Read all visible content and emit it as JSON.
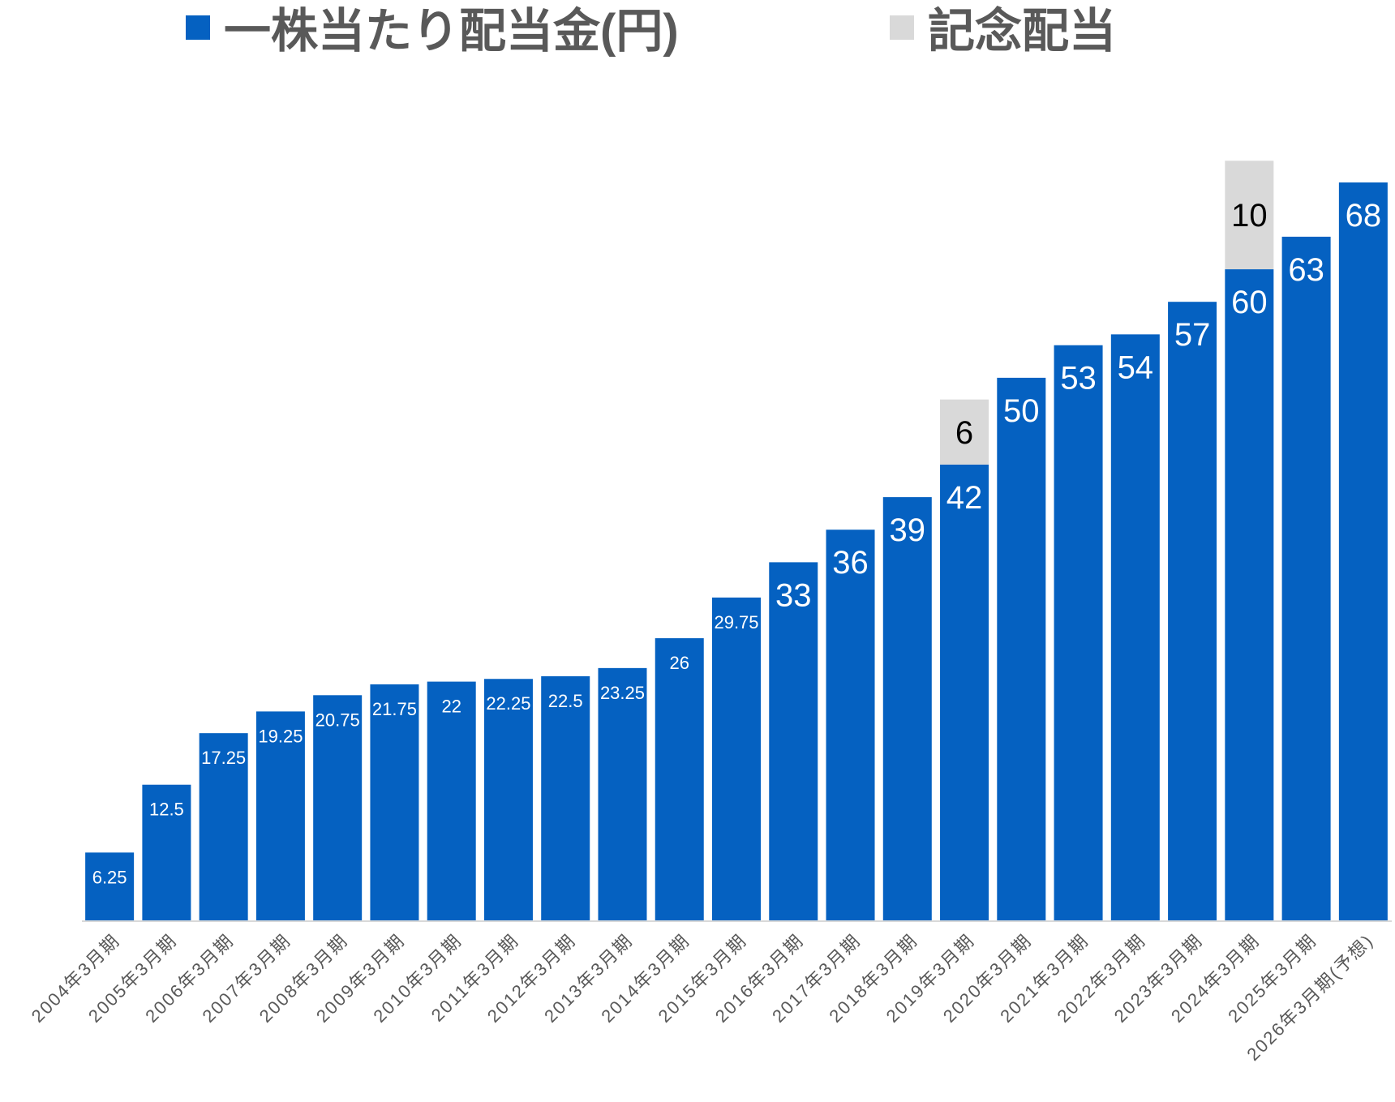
{
  "legend": {
    "items": [
      {
        "label": "一株当たり配当金(円)",
        "color": "#0561C1"
      },
      {
        "label": "記念配当",
        "color": "#D9D9D9"
      }
    ]
  },
  "chart_data": {
    "type": "bar",
    "stacked": true,
    "title": "",
    "xlabel": "",
    "ylabel": "",
    "categories": [
      "2004年3月期",
      "2005年3月期",
      "2006年3月期",
      "2007年3月期",
      "2008年3月期",
      "2009年3月期",
      "2010年3月期",
      "2011年3月期",
      "2012年3月期",
      "2013年3月期",
      "2014年3月期",
      "2015年3月期",
      "2016年3月期",
      "2017年3月期",
      "2018年3月期",
      "2019年3月期",
      "2020年3月期",
      "2021年3月期",
      "2022年3月期",
      "2023年3月期",
      "2024年3月期",
      "2025年3月期",
      "2026年3月期(予想)"
    ],
    "series": [
      {
        "name": "一株当たり配当金(円)",
        "color": "#0561C1",
        "label_color": "#FFFFFF",
        "values": [
          6.25,
          12.5,
          17.25,
          19.25,
          20.75,
          21.75,
          22,
          22.25,
          22.5,
          23.25,
          26,
          29.75,
          33,
          36,
          39,
          42,
          50,
          53,
          54,
          57,
          60,
          63,
          68
        ],
        "labels": [
          "6.25",
          "12.5",
          "17.25",
          "19.25",
          "20.75",
          "21.75",
          "22",
          "22.25",
          "22.5",
          "23.25",
          "26",
          "29.75",
          "33",
          "36",
          "39",
          "42",
          "50",
          "53",
          "54",
          "57",
          "60",
          "63",
          "68"
        ]
      },
      {
        "name": "記念配当",
        "color": "#D9D9D9",
        "label_color": "#000000",
        "values": [
          0,
          0,
          0,
          0,
          0,
          0,
          0,
          0,
          0,
          0,
          0,
          0,
          0,
          0,
          0,
          6,
          0,
          0,
          0,
          0,
          10,
          0,
          0
        ],
        "labels": [
          "",
          "",
          "",
          "",
          "",
          "",
          "",
          "",
          "",
          "",
          "",
          "",
          "",
          "",
          "",
          "6",
          "",
          "",
          "",
          "",
          "10",
          "",
          ""
        ]
      }
    ],
    "ylim": [
      0,
      72
    ],
    "grid": false,
    "legend_position": "top"
  }
}
